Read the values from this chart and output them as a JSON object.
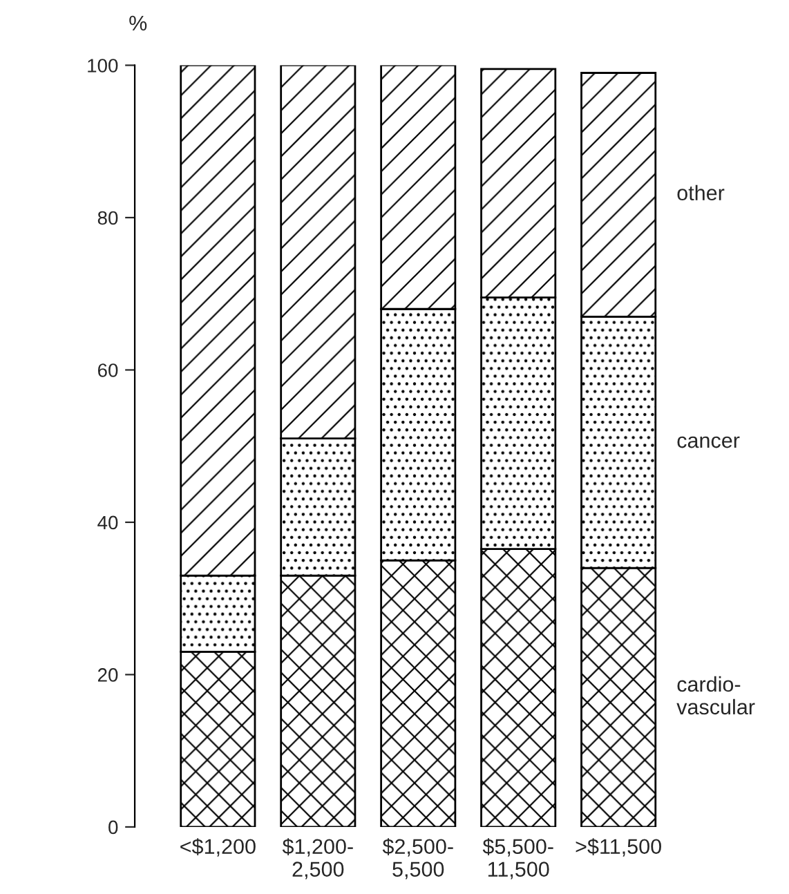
{
  "chart_data": {
    "type": "bar",
    "stacked": true,
    "ylabel": "%",
    "categories": [
      "<$1,200",
      "$1,200-\n2,500",
      "$2,500-\n5,500",
      "$5,500-\n11,500",
      ">$11,500"
    ],
    "series": [
      {
        "name": "cardio-\nvascular",
        "color": "#000000",
        "values": [
          23,
          33,
          35,
          36.5,
          34
        ]
      },
      {
        "name": "cancer",
        "color": "#000000",
        "values": [
          10,
          18,
          33,
          33,
          33
        ]
      },
      {
        "name": "other",
        "color": "#000000",
        "values": [
          67,
          49,
          32,
          30,
          32
        ]
      }
    ],
    "ylim": [
      0,
      100
    ],
    "yticks": [
      0,
      20,
      40,
      60,
      80,
      100
    ],
    "grid": false
  }
}
